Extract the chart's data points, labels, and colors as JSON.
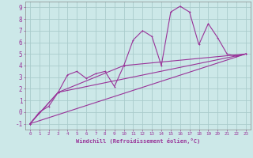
{
  "bg_color": "#cce8e8",
  "grid_color": "#aacccc",
  "line_color": "#993399",
  "marker_color": "#993399",
  "xlabel": "Windchill (Refroidissement éolien,°C)",
  "xlim": [
    -0.5,
    23.5
  ],
  "ylim": [
    -1.5,
    9.5
  ],
  "xticks": [
    0,
    1,
    2,
    3,
    4,
    5,
    6,
    7,
    8,
    9,
    10,
    11,
    12,
    13,
    14,
    15,
    16,
    17,
    18,
    19,
    20,
    21,
    22,
    23
  ],
  "yticks": [
    -1,
    0,
    1,
    2,
    3,
    4,
    5,
    6,
    7,
    8,
    9
  ],
  "series1_x": [
    0,
    1,
    2,
    3,
    4,
    5,
    6,
    7,
    8,
    9,
    10,
    11,
    12,
    13,
    14,
    15,
    16,
    17,
    18,
    19,
    20,
    21,
    22,
    23
  ],
  "series1_y": [
    -1,
    0,
    0.5,
    1.7,
    3.2,
    3.5,
    2.9,
    3.3,
    3.5,
    2.2,
    4.0,
    6.2,
    7.0,
    6.5,
    4.0,
    8.6,
    9.1,
    8.6,
    5.8,
    7.6,
    6.4,
    5.0,
    4.8,
    5.0
  ],
  "series2_x": [
    0,
    23
  ],
  "series2_y": [
    -1,
    5.0
  ],
  "series3_x": [
    0,
    3,
    23
  ],
  "series3_y": [
    -1,
    1.7,
    5.0
  ],
  "series4_x": [
    0,
    3,
    10,
    23
  ],
  "series4_y": [
    -1,
    1.7,
    4.0,
    5.0
  ]
}
